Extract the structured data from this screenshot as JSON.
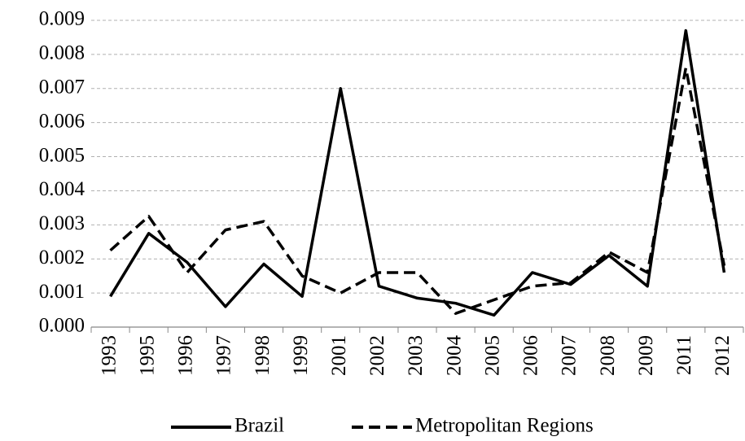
{
  "chart_data": {
    "type": "line",
    "categories": [
      "1993",
      "1995",
      "1996",
      "1997",
      "1998",
      "1999",
      "2001",
      "2002",
      "2003",
      "2004",
      "2005",
      "2006",
      "2007",
      "2008",
      "2009",
      "2011",
      "2012"
    ],
    "series": [
      {
        "name": "Brazil",
        "color": "#000000",
        "line_style": "solid",
        "values": [
          0.0009,
          0.00275,
          0.0019,
          0.0006,
          0.00185,
          0.0009,
          0.007,
          0.0012,
          0.00085,
          0.0007,
          0.00035,
          0.0016,
          0.00125,
          0.0021,
          0.0012,
          0.0087,
          0.0016
        ]
      },
      {
        "name": "Metropolitan Regions",
        "color": "#000000",
        "line_style": "dashed",
        "values": [
          0.00225,
          0.00325,
          0.0016,
          0.00285,
          0.0031,
          0.0015,
          0.001,
          0.0016,
          0.0016,
          0.0004,
          0.0008,
          0.0012,
          0.0013,
          0.0022,
          0.0016,
          0.0076,
          0.0018
        ]
      }
    ],
    "ylim": [
      0,
      0.009
    ],
    "yticks": [
      {
        "value": 0,
        "label": "0.000"
      },
      0.001,
      0.002,
      0.003,
      0.004,
      0.005,
      0.006,
      0.007,
      0.008,
      0.009
    ],
    "grid": true,
    "legend": "bottom"
  }
}
